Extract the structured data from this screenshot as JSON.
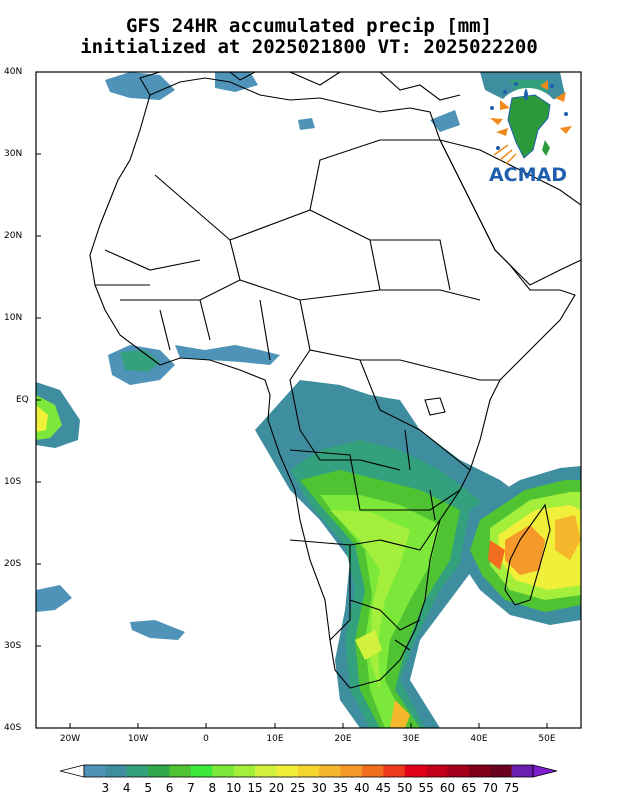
{
  "title": {
    "line1": "GFS 24HR accumulated precip [mm]",
    "line2": "initialized at 2025021800 VT: 2025022200"
  },
  "logo": {
    "text": "ACMAD",
    "icon": "acmad-africa-logo-icon"
  },
  "axes": {
    "lat_labels": [
      "40N",
      "30N",
      "20N",
      "10N",
      "EQ",
      "10S",
      "20S",
      "30S",
      "40S"
    ],
    "lon_labels": [
      "20W",
      "10W",
      "0",
      "10E",
      "20E",
      "30E",
      "40E",
      "50E"
    ]
  },
  "colorbar": {
    "levels": [
      "3",
      "4",
      "5",
      "6",
      "7",
      "8",
      "10",
      "15",
      "20",
      "25",
      "30",
      "35",
      "40",
      "45",
      "50",
      "55",
      "60",
      "65",
      "70",
      "75"
    ],
    "colors": [
      "#4f93b8",
      "#3e8ea0",
      "#33a17e",
      "#2ea84a",
      "#4fc331",
      "#3de83d",
      "#7be83a",
      "#a4ef3c",
      "#d2f13c",
      "#f0f03a",
      "#f5d62c",
      "#f5b82c",
      "#f59a2a",
      "#f06e1e",
      "#ee3a1c",
      "#e0001a",
      "#c2001a",
      "#a2001a",
      "#80001a",
      "#6a0020",
      "#6a1fb0"
    ],
    "under_color": "#ffffff",
    "over_color": "#7e1fcf"
  },
  "colors": {
    "land_outline": "#000000",
    "frame": "#000000"
  }
}
